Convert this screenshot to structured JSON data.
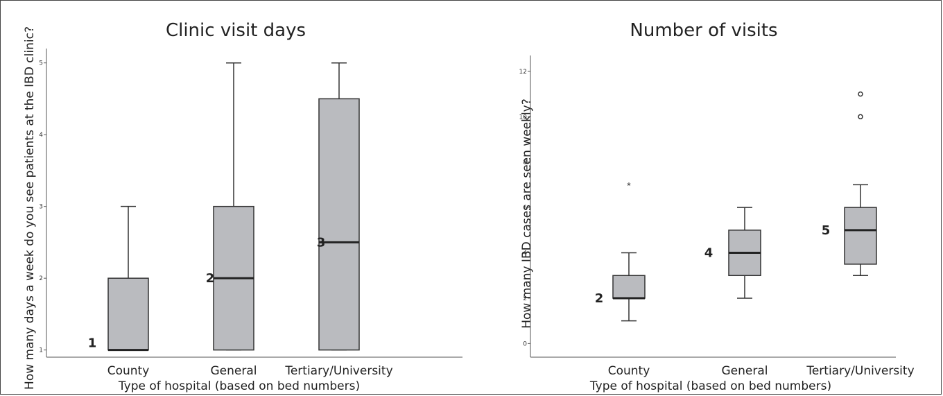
{
  "chart_data": [
    {
      "type": "box",
      "title": "Clinic visit days",
      "xlabel": "Type of hospital (based on bed numbers)",
      "ylabel": "How many days a week do you see patients at the IBD clinic?",
      "ylim": [
        0.9,
        5.2
      ],
      "yticks": [
        "1",
        "2",
        "3",
        "4",
        "5"
      ],
      "categories": [
        "County",
        "General",
        "Tertiary/University"
      ],
      "boxes": [
        {
          "category": "County",
          "whisker_low": 1,
          "q1": 1,
          "median": 1,
          "q3": 2,
          "whisker_high": 3,
          "outliers": [],
          "extremes": []
        },
        {
          "category": "General",
          "whisker_low": 1,
          "q1": 1,
          "median": 2,
          "q3": 3,
          "whisker_high": 5,
          "outliers": [],
          "extremes": []
        },
        {
          "category": "Tertiary/University",
          "whisker_low": 1,
          "q1": 1,
          "median": 2.5,
          "q3": 4.5,
          "whisker_high": 5,
          "outliers": [],
          "extremes": []
        }
      ],
      "annotations": [
        "1",
        "2",
        "3"
      ]
    },
    {
      "type": "box",
      "title": "Number of visits",
      "xlabel": "Type of hospital (based on bed numbers)",
      "ylabel": "How many IBD cases are seen weekly?",
      "ylim": [
        -0.6,
        12.7
      ],
      "yticks": [
        "0",
        "2",
        "4",
        "6",
        "8",
        "10",
        "12"
      ],
      "categories": [
        "County",
        "General",
        "Tertiary/University"
      ],
      "boxes": [
        {
          "category": "County",
          "whisker_low": 1,
          "q1": 2,
          "median": 2,
          "q3": 3,
          "whisker_high": 4,
          "outliers": [],
          "extremes": [
            7
          ]
        },
        {
          "category": "General",
          "whisker_low": 2,
          "q1": 3,
          "median": 4,
          "q3": 5,
          "whisker_high": 6,
          "outliers": [],
          "extremes": []
        },
        {
          "category": "Tertiary/University",
          "whisker_low": 3,
          "q1": 3.5,
          "median": 5,
          "q3": 6,
          "whisker_high": 7,
          "outliers": [
            10,
            11
          ],
          "extremes": []
        }
      ],
      "annotations": [
        "2",
        "4",
        "5"
      ]
    }
  ],
  "colors": {
    "box_fill": "#babbbf",
    "stroke": "#333333",
    "axis": "#555555"
  }
}
